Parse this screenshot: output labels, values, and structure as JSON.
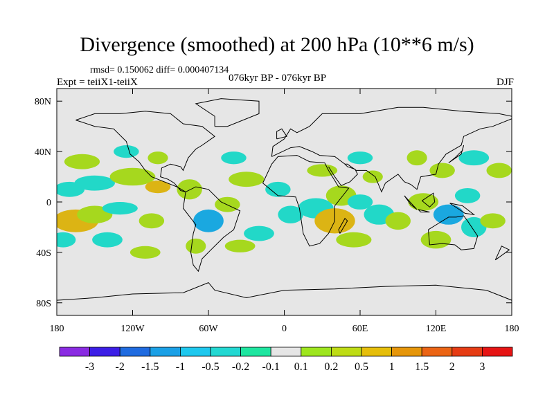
{
  "header": {
    "title": "Divergence (smoothed) at 200 hPa (10**6 m/s)",
    "stats": "rmsd= 0.150062 diff= 0.000407134",
    "experiment": "Expt = teiiX1-teiiX",
    "period": "076kyr BP - 076kyr BP",
    "season": "DJF"
  },
  "map": {
    "lon_range": [
      -180,
      180
    ],
    "lat_range": [
      -90,
      90
    ],
    "x_ticks": [
      "180",
      "120W",
      "60W",
      "0",
      "60E",
      "120E",
      "180"
    ],
    "y_ticks": [
      "80N",
      "40N",
      "0",
      "40S",
      "80S"
    ],
    "background_color": "#e6e6e6",
    "coastline_color": "#000000"
  },
  "colorbar": {
    "labels": [
      "-3",
      "-2",
      "-1.5",
      "-1",
      "-0.5",
      "-0.2",
      "-0.1",
      "0.1",
      "0.2",
      "0.5",
      "1",
      "1.5",
      "2",
      "3"
    ],
    "colors": [
      "#8a2be2",
      "#3c1ee6",
      "#1f6be0",
      "#1aa0e6",
      "#1ec8ee",
      "#22d8d2",
      "#1ee6a0",
      "#e6e6e6",
      "#9ee61e",
      "#bedc14",
      "#e6be0a",
      "#e6960a",
      "#eb6414",
      "#e63c14",
      "#e61414"
    ]
  },
  "field": {
    "positive_color": "#a6d81e",
    "positive_strong_color": "#dcb414",
    "negative_color": "#22d8c8",
    "negative_strong_color": "#1aa8e0"
  }
}
